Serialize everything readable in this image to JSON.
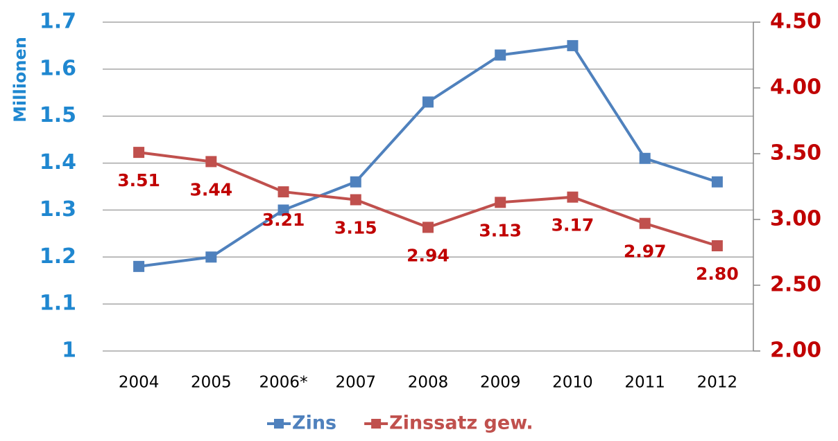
{
  "chart_data": {
    "type": "line",
    "y_label": "Millionen",
    "categories": [
      "2004",
      "2005",
      "2006*",
      "2007",
      "2008",
      "2009",
      "2010",
      "2011",
      "2012"
    ],
    "series": [
      {
        "name": "Zins",
        "color": "#4f81bd",
        "values": [
          1.18,
          1.2,
          1.3,
          1.36,
          1.53,
          1.63,
          1.65,
          1.41,
          1.36
        ]
      },
      {
        "name": "Zinssatz gew.",
        "color": "#c0504d",
        "axis": "y2",
        "values": [
          3.51,
          3.44,
          3.21,
          3.15,
          2.94,
          3.13,
          3.17,
          2.97,
          2.8
        ],
        "value_labels": [
          "3.51",
          "3.44",
          "3.21",
          "3.15",
          "2.94",
          "3.13",
          "3.17",
          "2.97",
          "2.80"
        ]
      }
    ],
    "ylim": [
      1,
      1.7
    ],
    "yticks": [
      1,
      1.1,
      1.2,
      1.3,
      1.4,
      1.5,
      1.6,
      1.7
    ],
    "y2lim": [
      2,
      4.5
    ],
    "y2ticks": [
      {
        "value": 2,
        "label": "2.00"
      },
      {
        "value": 2.5,
        "label": "2.50"
      },
      {
        "value": 3,
        "label": "3.00"
      },
      {
        "value": 3.5,
        "label": "3.50"
      },
      {
        "value": 4,
        "label": "4.00"
      },
      {
        "value": 4.5,
        "label": "4.50"
      }
    ],
    "grid": true,
    "legend": "bottom"
  }
}
